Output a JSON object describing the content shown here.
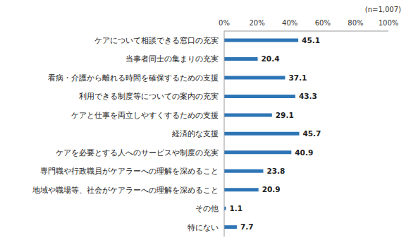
{
  "chart_data": {
    "type": "bar",
    "subtitle": "(n=1,007)",
    "orientation": "horizontal",
    "categories": [
      "ケアについて相談できる窓口の充実",
      "当事者同士の集まりの充実",
      "看病・介護から離れる時間を確保するための支援",
      "利用できる制度等についての案内の充実",
      "ケアと仕事を両立しやすくするための支援",
      "経済的な支援",
      "ケアを必要とする人へのサービスや制度の充実",
      "専門職や行政職員がケアラーへの理解を深めること",
      "地域や職場等、社会がケアラーへの理解を深めること",
      "その他",
      "特にない"
    ],
    "values": [
      45.1,
      20.4,
      37.1,
      43.3,
      29.1,
      45.7,
      40.9,
      23.8,
      20.9,
      1.1,
      7.7
    ],
    "color": "#2e75b6",
    "xlim": [
      0,
      100
    ],
    "xticks": [
      {
        "value": 0,
        "label": "0%"
      },
      {
        "value": 20,
        "label": "20%"
      },
      {
        "value": 40,
        "label": "40%"
      },
      {
        "value": 60,
        "label": "60%"
      },
      {
        "value": 80,
        "label": "80%"
      },
      {
        "value": 100,
        "label": "100%"
      }
    ],
    "grid": false,
    "data_labels": true
  }
}
